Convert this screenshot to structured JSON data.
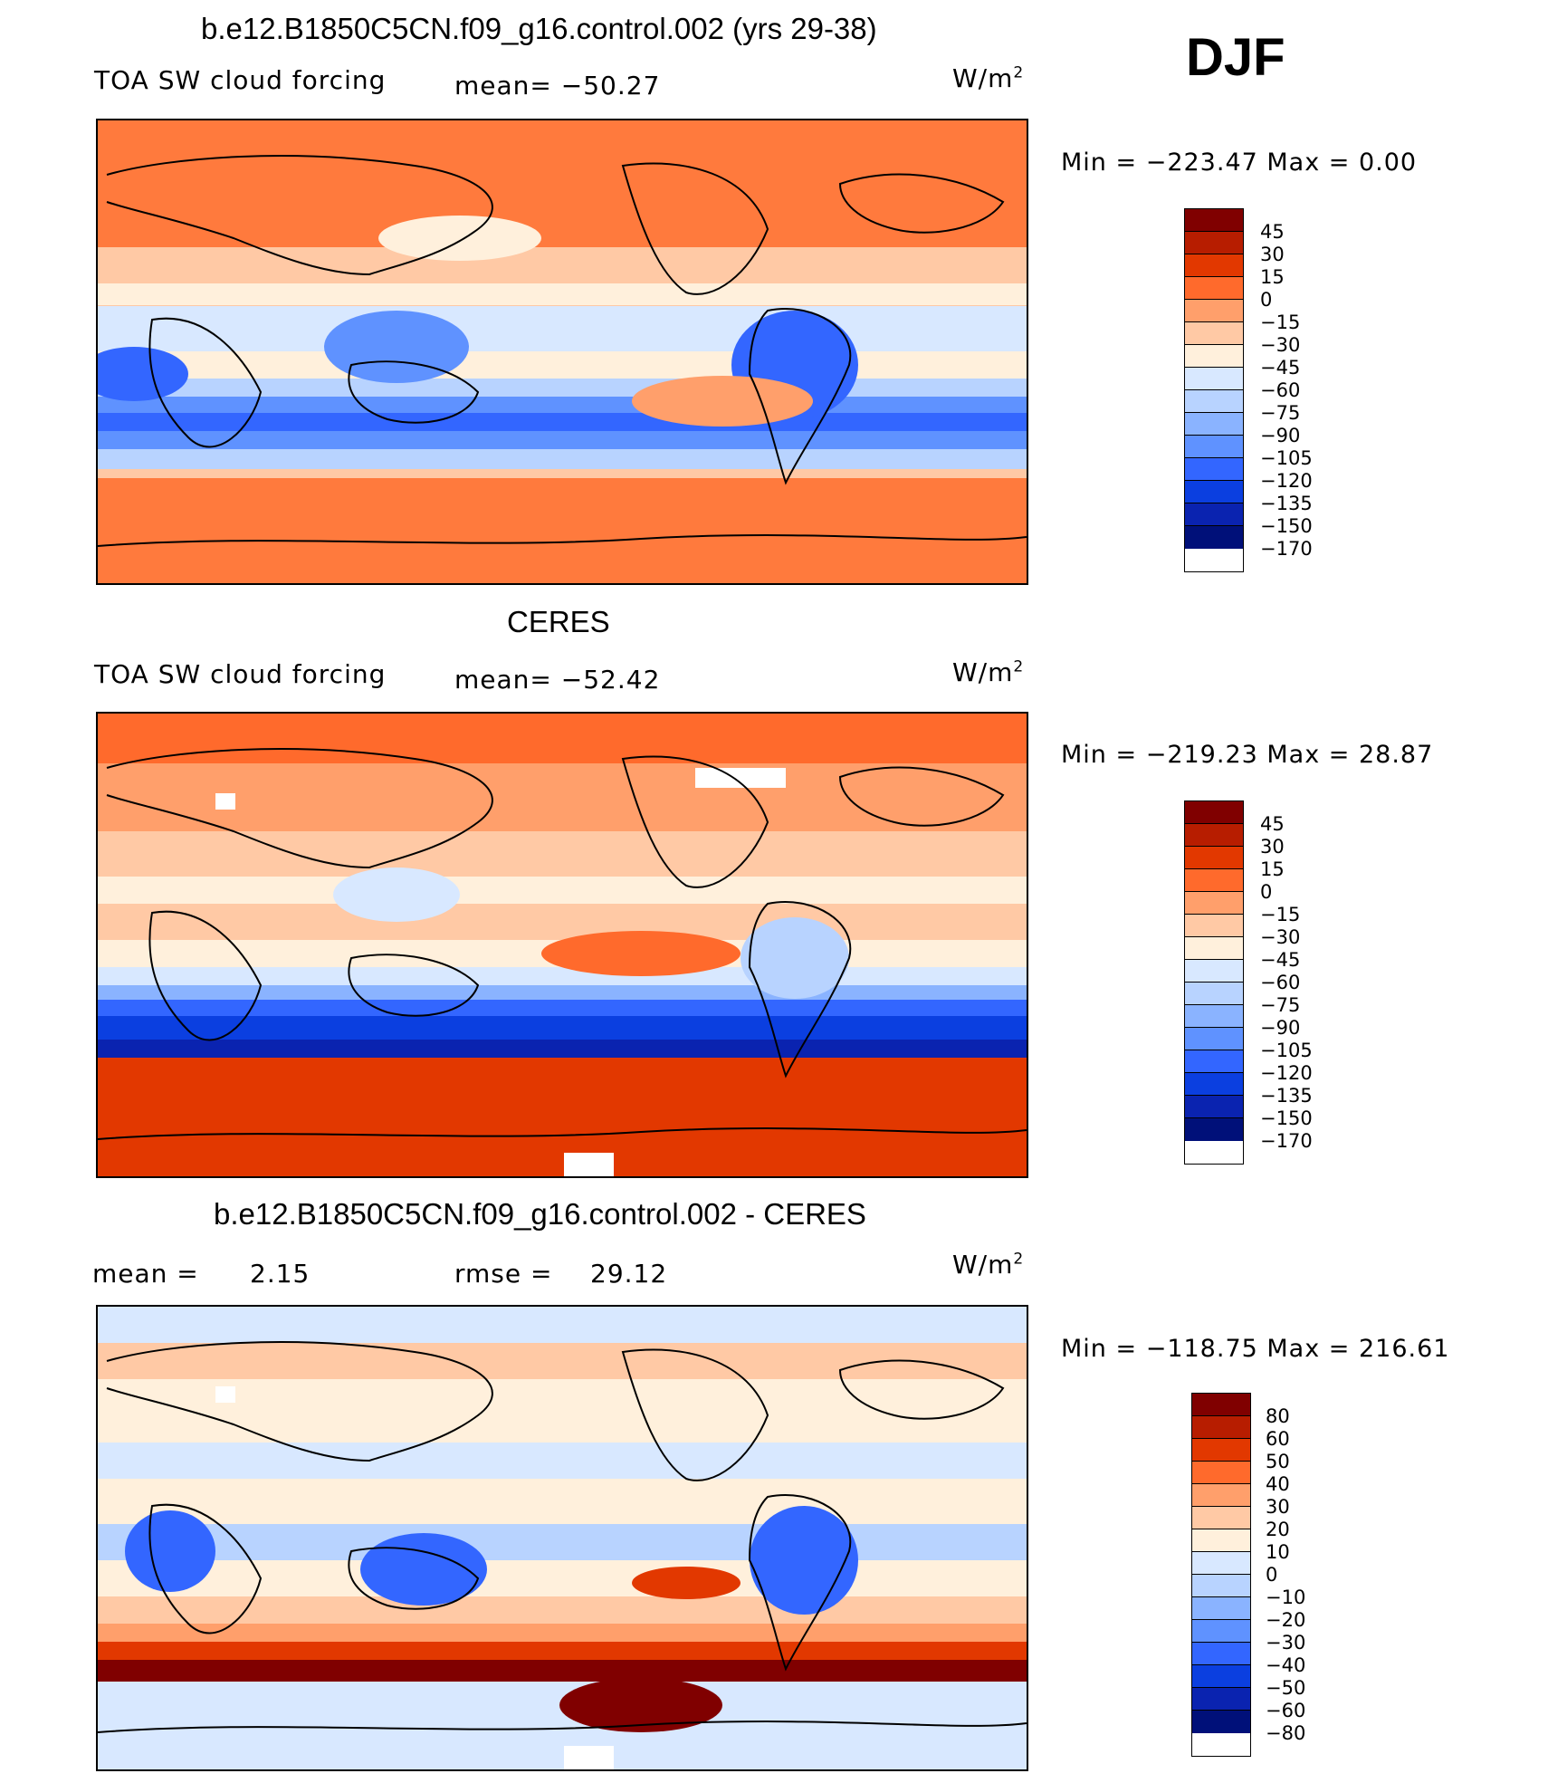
{
  "season": "DJF",
  "units_label": "W/m",
  "units_power": "2",
  "panels": [
    {
      "title": "b.e12.B1850C5CN.f09_g16.control.002 (yrs 29-38)",
      "variable": "TOA SW cloud forcing",
      "stat_text": "mean= −50.27",
      "minmax": "Min = −223.47  Max =    0.00",
      "palette": [
        "#800000",
        "#b71d00",
        "#e23800",
        "#ff6a2c",
        "#ff9f6b",
        "#ffc9a5",
        "#fff0dc",
        "#d8e8ff",
        "#b8d3ff",
        "#8ab3ff",
        "#5f92ff",
        "#3366ff",
        "#0b3fe0",
        "#0a23b0",
        "#001079"
      ],
      "levels": [
        "45",
        "30",
        "15",
        "0",
        "−15",
        "−30",
        "−45",
        "−60",
        "−75",
        "−90",
        "−105",
        "−120",
        "−135",
        "−150",
        "−170"
      ]
    },
    {
      "title": "CERES",
      "variable": "TOA SW cloud forcing",
      "stat_text": "mean= −52.42",
      "minmax": "Min = −219.23  Max =   28.87",
      "palette": [
        "#800000",
        "#b71d00",
        "#e23800",
        "#ff6a2c",
        "#ff9f6b",
        "#ffc9a5",
        "#fff0dc",
        "#d8e8ff",
        "#b8d3ff",
        "#8ab3ff",
        "#5f92ff",
        "#3366ff",
        "#0b3fe0",
        "#0a23b0",
        "#001079"
      ],
      "levels": [
        "45",
        "30",
        "15",
        "0",
        "−15",
        "−30",
        "−45",
        "−60",
        "−75",
        "−90",
        "−105",
        "−120",
        "−135",
        "−150",
        "−170"
      ]
    },
    {
      "title": "b.e12.B1850C5CN.f09_g16.control.002 - CERES",
      "mean_label": "mean =",
      "mean_value": "2.15",
      "rmse_label": "rmse =",
      "rmse_value": "29.12",
      "minmax": "Min = −118.75  Max =  216.61",
      "palette": [
        "#800000",
        "#b71d00",
        "#e23800",
        "#ff6a2c",
        "#ff9f6b",
        "#ffc9a5",
        "#fff0dc",
        "#d8e8ff",
        "#b8d3ff",
        "#8ab3ff",
        "#5f92ff",
        "#3366ff",
        "#0b3fe0",
        "#0a23b0",
        "#001079"
      ],
      "levels": [
        "80",
        "60",
        "50",
        "40",
        "30",
        "20",
        "10",
        "0",
        "−10",
        "−20",
        "−30",
        "−40",
        "−50",
        "−60",
        "−80"
      ]
    }
  ]
}
